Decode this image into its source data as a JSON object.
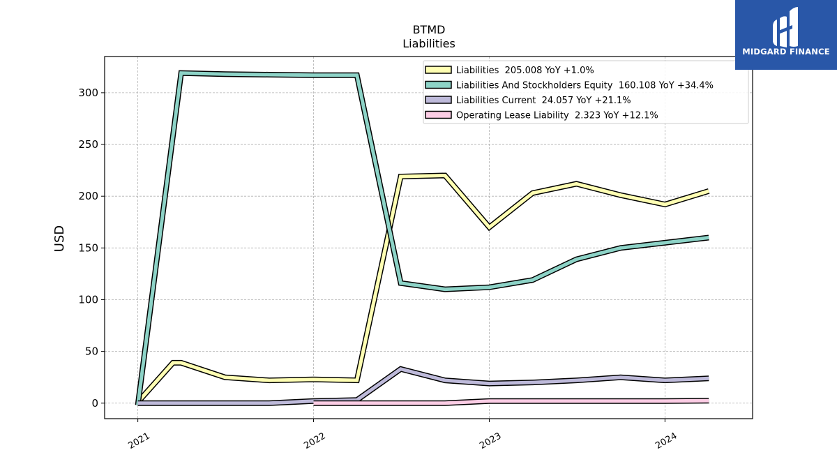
{
  "chart_data": {
    "type": "line",
    "title": "BTMD",
    "subtitle": "Liabilities",
    "ylabel": "USD",
    "xlabel": "",
    "ylim": [
      -15,
      335
    ],
    "xlim": [
      "2020-10-24",
      "2024-07-01"
    ],
    "yticks": [
      0,
      50,
      100,
      150,
      200,
      250,
      300
    ],
    "xticks": [
      "2021",
      "2022",
      "2023",
      "2024"
    ],
    "grid": true,
    "legend_position": "top-right",
    "series": [
      {
        "name": "Liabilities  205.008 YoY +1.0%",
        "color": "#ffffb3",
        "points": [
          [
            "2021-01-01",
            1
          ],
          [
            "2021-03-15",
            39
          ],
          [
            "2021-04-01",
            39
          ],
          [
            "2021-07-01",
            25
          ],
          [
            "2021-10-01",
            22
          ],
          [
            "2022-01-01",
            23
          ],
          [
            "2022-04-01",
            22
          ],
          [
            "2022-07-01",
            219
          ],
          [
            "2022-10-01",
            220
          ],
          [
            "2023-01-01",
            170
          ],
          [
            "2023-04-01",
            203
          ],
          [
            "2023-07-01",
            212
          ],
          [
            "2023-10-01",
            201
          ],
          [
            "2024-01-01",
            192
          ],
          [
            "2024-04-01",
            205
          ]
        ]
      },
      {
        "name": "Liabilities And Stockholders Equity  160.108 YoY +34.4%",
        "color": "#8dd3c7",
        "points": [
          [
            "2021-01-01",
            -2
          ],
          [
            "2021-04-01",
            319
          ],
          [
            "2021-07-01",
            318
          ],
          [
            "2021-10-01",
            317.5
          ],
          [
            "2022-01-01",
            317
          ],
          [
            "2022-04-01",
            317
          ],
          [
            "2022-07-01",
            116
          ],
          [
            "2022-10-01",
            110
          ],
          [
            "2023-01-01",
            112
          ],
          [
            "2023-04-01",
            119
          ],
          [
            "2023-07-01",
            139
          ],
          [
            "2023-10-01",
            150
          ],
          [
            "2024-01-01",
            155
          ],
          [
            "2024-04-01",
            160
          ]
        ]
      },
      {
        "name": "Liabilities Current  24.057 YoY +21.1%",
        "color": "#bebada",
        "points": [
          [
            "2021-01-01",
            0
          ],
          [
            "2021-04-01",
            0
          ],
          [
            "2021-07-01",
            0
          ],
          [
            "2021-10-01",
            0
          ],
          [
            "2022-01-01",
            2
          ],
          [
            "2022-04-01",
            3
          ],
          [
            "2022-07-01",
            33
          ],
          [
            "2022-10-01",
            22
          ],
          [
            "2023-01-01",
            19
          ],
          [
            "2023-04-01",
            20
          ],
          [
            "2023-07-01",
            22
          ],
          [
            "2023-10-01",
            25
          ],
          [
            "2024-01-01",
            22
          ],
          [
            "2024-04-01",
            24
          ]
        ]
      },
      {
        "name": "Operating Lease Liability  2.323 YoY +12.1%",
        "color": "#fccde5",
        "points": [
          [
            "2022-01-01",
            0
          ],
          [
            "2022-04-01",
            0
          ],
          [
            "2022-07-01",
            0
          ],
          [
            "2022-10-01",
            0
          ],
          [
            "2023-01-01",
            2
          ],
          [
            "2023-04-01",
            2
          ],
          [
            "2023-07-01",
            2
          ],
          [
            "2023-10-01",
            2
          ],
          [
            "2024-01-01",
            2
          ],
          [
            "2024-04-01",
            2.3
          ]
        ]
      }
    ]
  },
  "logo": {
    "text": "MIDGARD FINANCE",
    "background": "#2957a8"
  }
}
